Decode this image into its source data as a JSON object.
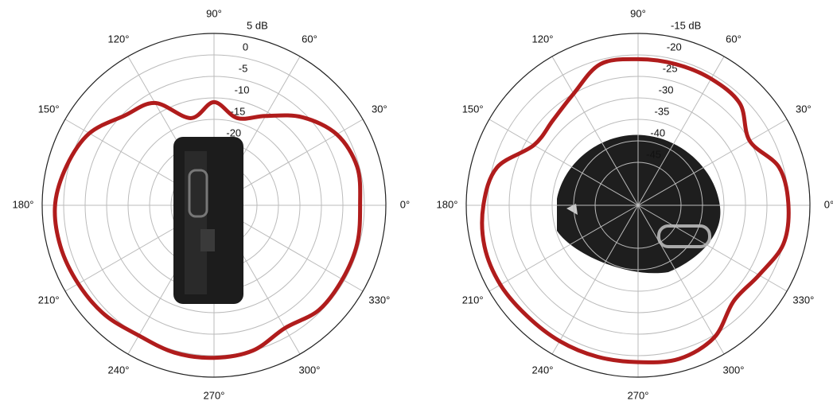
{
  "chart_data": [
    {
      "type": "polar",
      "theta": [
        0,
        15,
        30,
        45,
        60,
        75,
        90,
        105,
        120,
        135,
        150,
        165,
        180,
        195,
        210,
        225,
        240,
        255,
        270,
        285,
        300,
        315,
        330,
        345
      ],
      "series": [
        {
          "color": "#b01c1c",
          "values": [
            -1,
            -0.5,
            -2,
            -6,
            -11,
            -14,
            -11,
            -14,
            -7.5,
            -5.5,
            -1.5,
            0.5,
            2,
            2,
            1.5,
            1,
            0,
            0.5,
            0.5,
            0,
            -2,
            -0.5,
            -0.5,
            -0.5
          ]
        }
      ],
      "rlim": [
        -35,
        5
      ],
      "rticks": [
        {
          "value": 5,
          "label": "5 dB"
        },
        0,
        -5,
        -10,
        -15,
        -20,
        -25
      ],
      "thetaticks": [
        {
          "value": 0,
          "label": "0°"
        },
        {
          "value": 30,
          "label": "30°"
        },
        {
          "value": 60,
          "label": "60°"
        },
        {
          "value": 90,
          "label": "90°"
        },
        {
          "value": 120,
          "label": "120°"
        },
        {
          "value": 150,
          "label": "150°"
        },
        {
          "value": 180,
          "label": "180°"
        },
        {
          "value": 210,
          "label": "210°"
        },
        {
          "value": 240,
          "label": "240°"
        },
        {
          "value": 270,
          "label": "270°"
        },
        {
          "value": 300,
          "label": "300°"
        },
        {
          "value": 330,
          "label": "330°"
        }
      ],
      "grid": true
    },
    {
      "type": "polar",
      "theta": [
        0,
        15,
        30,
        45,
        60,
        75,
        90,
        105,
        120,
        135,
        150,
        165,
        180,
        195,
        210,
        225,
        240,
        255,
        270,
        285,
        300,
        315,
        330,
        345
      ],
      "series": [
        {
          "color": "#b01c1c",
          "values": [
            -20,
            -21,
            -25,
            -21.5,
            -21,
            -21,
            -21,
            -21,
            -25,
            -27,
            -27,
            -21,
            -19,
            -18,
            -18,
            -18.5,
            -18.5,
            -18.5,
            -18.5,
            -18,
            -19.5,
            -23.5,
            -22.5,
            -20
          ]
        }
      ],
      "rlim": [
        -55,
        -15
      ],
      "rticks": [
        {
          "value": -15,
          "label": "-15 dB"
        },
        -20,
        -25,
        -30,
        -35,
        -40,
        -45
      ],
      "thetaticks": [
        {
          "value": 0,
          "label": "0°"
        },
        {
          "value": 30,
          "label": "30°"
        },
        {
          "value": 60,
          "label": "60°"
        },
        {
          "value": 90,
          "label": "90°"
        },
        {
          "value": 120,
          "label": "120°"
        },
        {
          "value": 150,
          "label": "150°"
        },
        {
          "value": 180,
          "label": "180°"
        },
        {
          "value": 210,
          "label": "210°"
        },
        {
          "value": 240,
          "label": "240°"
        },
        {
          "value": 270,
          "label": "270°"
        },
        {
          "value": 300,
          "label": "300°"
        },
        {
          "value": 330,
          "label": "330°"
        }
      ],
      "grid": true
    }
  ]
}
